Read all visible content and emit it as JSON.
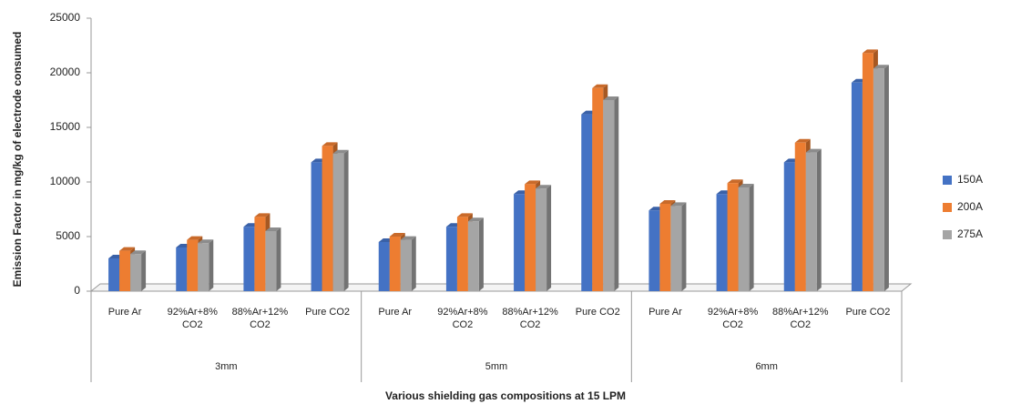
{
  "chart_data": {
    "type": "bar3d",
    "y_label": "Emission Factor in mg/kg of electrode consumed",
    "x_label": "Various shielding gas compositions at 15 LPM",
    "groups": [
      "3mm",
      "5mm",
      "6mm"
    ],
    "categories": [
      "Pure Ar",
      "92%Ar+8% CO2",
      "88%Ar+12% CO2",
      "Pure CO2",
      "Pure Ar",
      "92%Ar+8% CO2",
      "88%Ar+12% CO2",
      "Pure CO2",
      "Pure Ar",
      "92%Ar+8% CO2",
      "88%Ar+12% CO2",
      "Pure CO2"
    ],
    "series": [
      {
        "name": "150A",
        "color": "#4472c4",
        "values": [
          3000,
          4000,
          5900,
          11800,
          4500,
          5900,
          8900,
          16200,
          7400,
          8900,
          11800,
          19100
        ]
      },
      {
        "name": "200A",
        "color": "#ed7d31",
        "values": [
          3700,
          4700,
          6800,
          13300,
          5000,
          6800,
          9800,
          18600,
          8000,
          9900,
          13600,
          21800
        ]
      },
      {
        "name": "275A",
        "color": "#a5a5a5",
        "values": [
          3400,
          4400,
          5500,
          12600,
          4700,
          6400,
          9400,
          17500,
          7800,
          9500,
          12700,
          20400
        ]
      }
    ],
    "ylim": [
      0,
      25000
    ],
    "yticks": [
      0,
      5000,
      10000,
      15000,
      20000,
      25000
    ],
    "legend": "right"
  }
}
